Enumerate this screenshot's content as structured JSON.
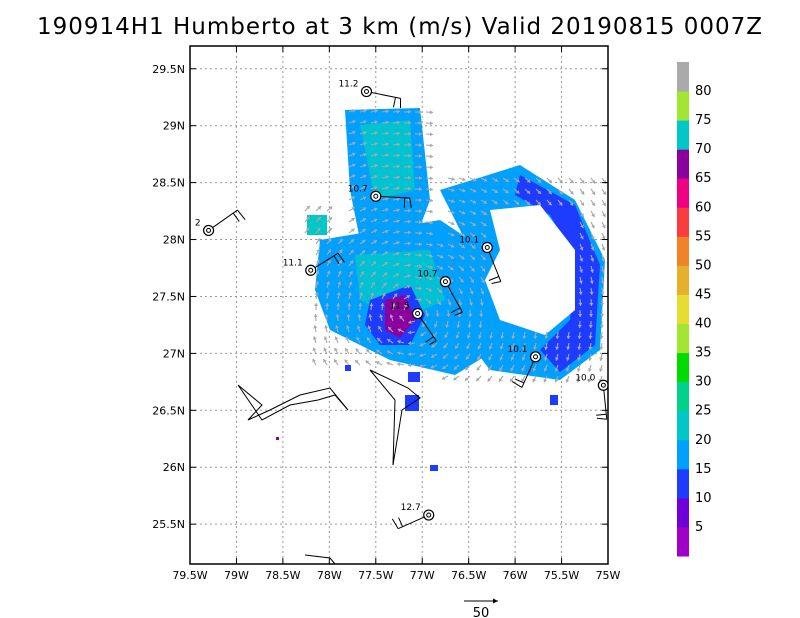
{
  "title": "190914H1 Humberto at 3 km (m/s) Valid 20190815 0007Z",
  "chart_data": {
    "type": "heatmap",
    "title": "190914H1 Humberto at 3 km (m/s) Valid 20190815 0007Z",
    "x_ticks": [
      "79.5W",
      "79W",
      "78.5W",
      "78W",
      "77.5W",
      "77W",
      "76.5W",
      "76W",
      "75.5W",
      "75W"
    ],
    "y_ticks": [
      "29.5N",
      "29N",
      "28.5N",
      "28N",
      "27.5N",
      "27N",
      "26.5N",
      "26N",
      "25.5N"
    ],
    "xlim": [
      -79.5,
      -75.0
    ],
    "ylim": [
      25.15,
      29.7
    ],
    "grid": true,
    "colorbar": {
      "labels": [
        "5",
        "10",
        "15",
        "20",
        "25",
        "30",
        "35",
        "40",
        "45",
        "50",
        "55",
        "60",
        "65",
        "70",
        "75",
        "80"
      ],
      "colors": [
        "#a000c8",
        "#6e00dc",
        "#1e3cff",
        "#00a0ff",
        "#00c8c8",
        "#00d28c",
        "#00dc00",
        "#a0e632",
        "#e6dc32",
        "#e6af2d",
        "#f08228",
        "#fa3c3c",
        "#f00082",
        "#8c00a0",
        "#00c8c8",
        "#a0e632",
        "#aaaaaa"
      ]
    },
    "reference_vector": "50",
    "stations": [
      {
        "label": "11.2",
        "lon": -77.6,
        "lat": 29.3
      },
      {
        "label": "10.7",
        "lon": -77.5,
        "lat": 28.38
      },
      {
        "label": "2",
        "lon": -79.3,
        "lat": 28.08
      },
      {
        "label": "10.1",
        "lon": -76.3,
        "lat": 27.93
      },
      {
        "label": "11.1",
        "lon": -78.2,
        "lat": 27.73
      },
      {
        "label": "10.7",
        "lon": -76.75,
        "lat": 27.63
      },
      {
        "label": "11.5",
        "lon": -77.05,
        "lat": 27.35
      },
      {
        "label": "10.1",
        "lon": -75.78,
        "lat": 26.97
      },
      {
        "label": "10.0",
        "lon": -75.05,
        "lat": 26.72
      },
      {
        "label": "12.7",
        "lon": -76.93,
        "lat": 25.58
      }
    ]
  }
}
